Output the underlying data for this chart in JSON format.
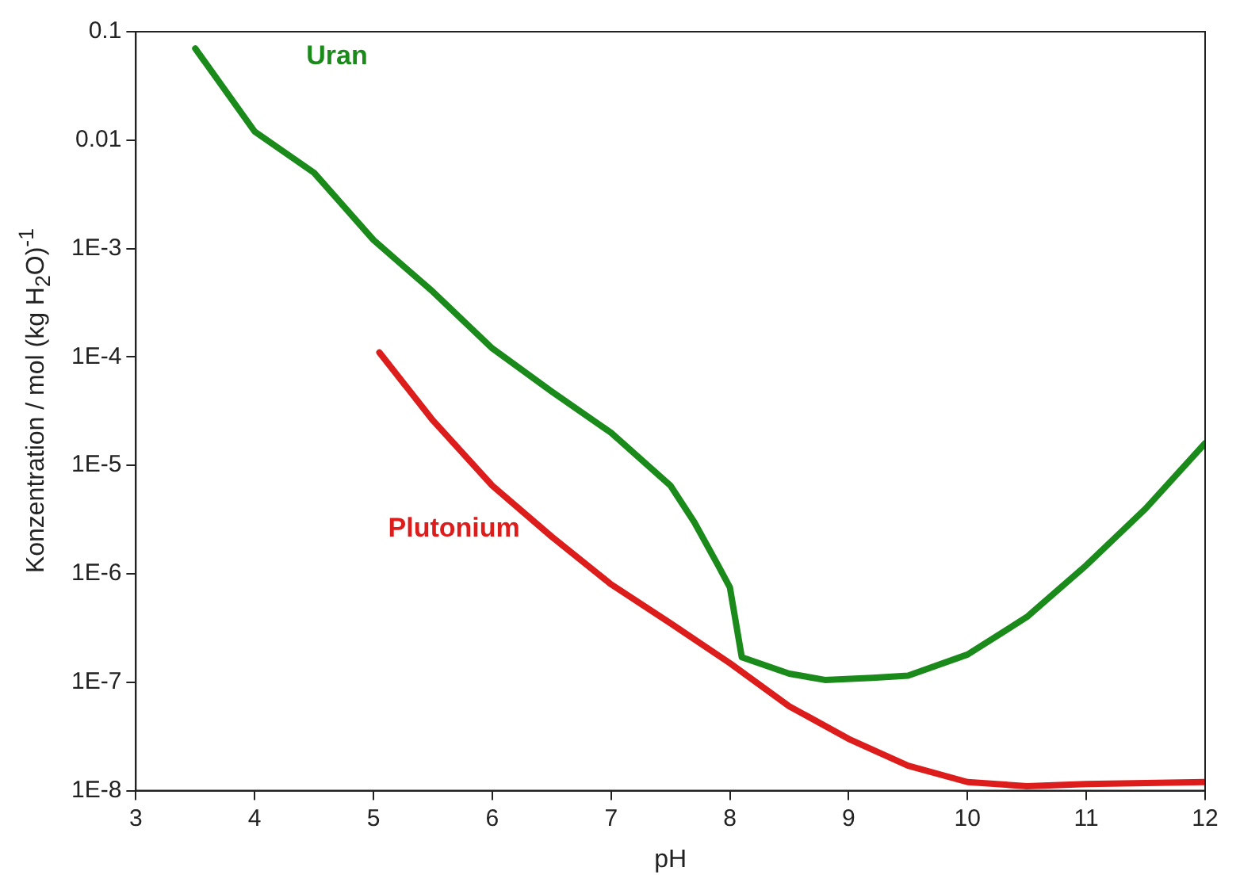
{
  "chart_data": {
    "type": "line",
    "xlabel": "pH",
    "ylabel": "Konzentration / mol (kg H$_{2}$O)$^{-1}$",
    "log": "y",
    "xlim": [
      3,
      12
    ],
    "xticks": [
      3,
      4,
      5,
      6,
      7,
      8,
      9,
      10,
      11,
      12
    ],
    "ylim": [
      1e-08,
      0.1
    ],
    "yticks": [
      {
        "value": 1e-08,
        "label": "1E-8"
      },
      {
        "value": 1e-07,
        "label": "1E-7"
      },
      {
        "value": 1e-06,
        "label": "1E-6"
      },
      {
        "value": 1e-05,
        "label": "1E-5"
      },
      {
        "value": 0.0001,
        "label": "1E-4"
      },
      {
        "value": 0.001,
        "label": "1E-3"
      },
      {
        "value": 0.01,
        "label": "0.01"
      },
      {
        "value": 0.1,
        "label": "0.1"
      }
    ],
    "grid": false,
    "legend": false,
    "marker": "none",
    "line_style": "solid",
    "series": [
      {
        "name": "Uran",
        "color": "#1a8a1a",
        "x": [
          3.5,
          4,
          4.5,
          5,
          5.5,
          6,
          6.5,
          7,
          7.5,
          7.7,
          7.9,
          8,
          8.1,
          8.5,
          8.8,
          9.2,
          9.5,
          10,
          10.5,
          11,
          11.5,
          12
        ],
        "values": [
          0.07,
          0.012,
          0.005,
          0.0012,
          0.0004,
          0.00012,
          4.8e-05,
          2e-05,
          6.5e-06,
          3e-06,
          1.2e-06,
          7.5e-07,
          1.7e-07,
          1.2e-07,
          1.05e-07,
          1.1e-07,
          1.15e-07,
          1.8e-07,
          4e-07,
          1.2e-06,
          4e-06,
          1.6e-05
        ]
      },
      {
        "name": "Plutonium",
        "color": "#dd1c1c",
        "x": [
          5.05,
          5.5,
          6,
          6.5,
          7,
          7.5,
          8,
          8.5,
          9,
          9.5,
          10,
          10.5,
          11,
          12
        ],
        "values": [
          0.00011,
          2.6e-05,
          6.5e-06,
          2.2e-06,
          8e-07,
          3.5e-07,
          1.5e-07,
          6e-08,
          3e-08,
          1.7e-08,
          1.2e-08,
          1.1e-08,
          1.15e-08,
          1.2e-08
        ]
      }
    ]
  }
}
